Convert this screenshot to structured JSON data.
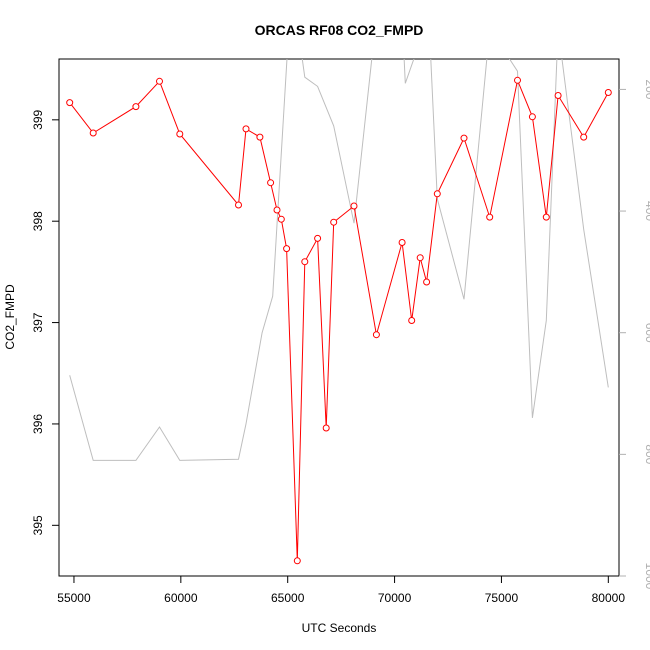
{
  "chart_data": {
    "type": "line",
    "title": "ORCAS RF08 CO2_FMPD",
    "xlabel": "UTC Seconds",
    "ylabel": "CO2_FMPD",
    "xlim": [
      54300,
      80500
    ],
    "ylim": [
      394.5,
      399.6
    ],
    "right_ylim": [
      1000,
      150
    ],
    "x_ticks": [
      55000,
      60000,
      65000,
      70000,
      75000,
      80000
    ],
    "y_ticks": [
      395,
      396,
      397,
      398,
      399
    ],
    "right_ticks": [
      200,
      400,
      600,
      800,
      1000
    ],
    "grid": false,
    "colors": {
      "primary": "#ff0000",
      "secondary": "#bebebe",
      "right_axis": "#b0b0b0"
    },
    "series": [
      {
        "axis": "left",
        "style": "line+points",
        "x": [
          54800,
          55900,
          57900,
          59000,
          59950,
          62700,
          63050,
          63700,
          64200,
          64500,
          64700,
          64950,
          65450,
          65800,
          66400,
          66800,
          67150,
          68100,
          69150,
          70350,
          70800,
          71200,
          71500,
          72000,
          73250,
          74450,
          75750,
          76450,
          77100,
          77650,
          78850,
          80000
        ],
        "y": [
          399.17,
          398.87,
          399.13,
          399.38,
          398.86,
          398.16,
          398.91,
          398.83,
          398.38,
          398.11,
          398.02,
          397.73,
          394.65,
          397.6,
          397.83,
          395.96,
          397.99,
          398.15,
          396.88,
          397.79,
          397.02,
          397.64,
          397.4,
          398.27,
          398.82,
          398.04,
          399.39,
          399.03,
          398.04,
          399.24,
          398.83,
          399.27
        ]
      },
      {
        "axis": "right",
        "style": "line",
        "x": [
          54800,
          55900,
          57900,
          59000,
          59950,
          62700,
          63050,
          63800,
          64300,
          65000,
          65400,
          65800,
          66400,
          67150,
          68100,
          69150,
          69300,
          70350,
          70500,
          71600,
          72000,
          73250,
          74450,
          75750,
          76450,
          77100,
          77650,
          78850,
          80000
        ],
        "y": [
          670,
          810,
          810,
          755,
          810,
          808,
          750,
          600,
          540,
          130,
          80,
          180,
          195,
          260,
          420,
          80,
          80,
          80,
          190,
          80,
          380,
          545,
          100,
          170,
          740,
          580,
          100,
          430,
          690
        ]
      }
    ]
  }
}
